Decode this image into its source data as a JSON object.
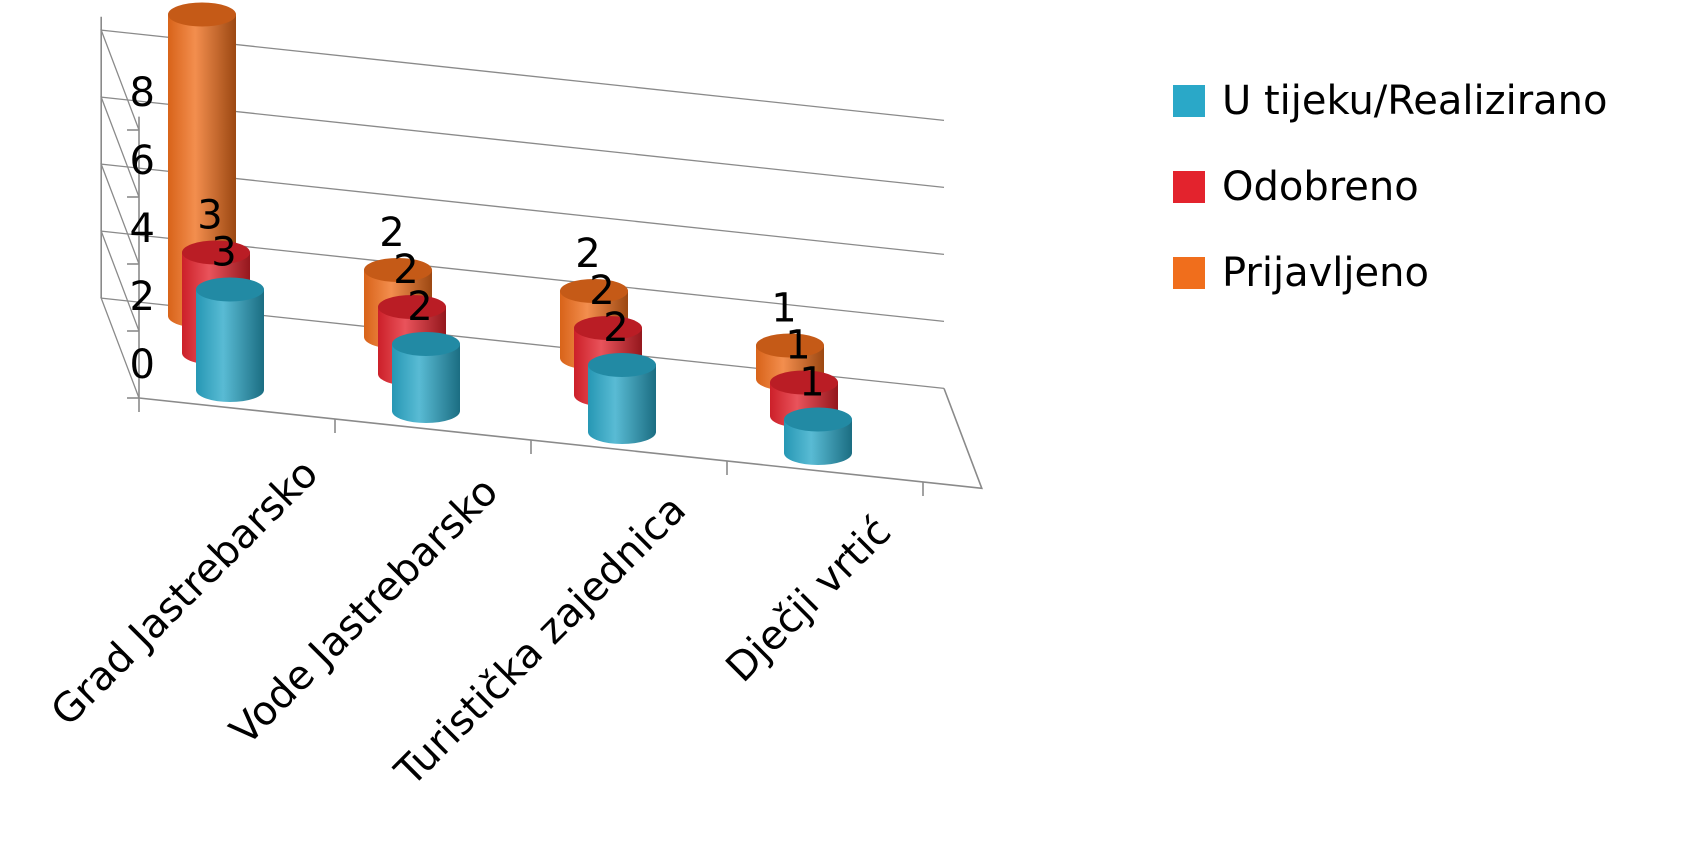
{
  "chart_data": {
    "type": "bar",
    "style": "3d-cylinder",
    "categories": [
      "Grad Jastrebarsko",
      "Vode Jastrebarsko",
      "Turistička zajednica",
      "Dječji vrtić"
    ],
    "series": [
      {
        "name": "U tijeku/Realizirano",
        "values": [
          3,
          2,
          2,
          1
        ],
        "color": "#2aa8c8"
      },
      {
        "name": "Odobreno",
        "values": [
          3,
          2,
          2,
          1
        ],
        "color": "#e3232d"
      },
      {
        "name": "Prijavljeno",
        "values": [
          9,
          2,
          2,
          1
        ],
        "color": "#f06e1c"
      }
    ],
    "y_ticks": [
      "0",
      "2",
      "4",
      "6",
      "8"
    ],
    "ylim": [
      0,
      8
    ],
    "grid": true,
    "legend_position": "right",
    "title": "",
    "xlabel": "",
    "ylabel": ""
  }
}
